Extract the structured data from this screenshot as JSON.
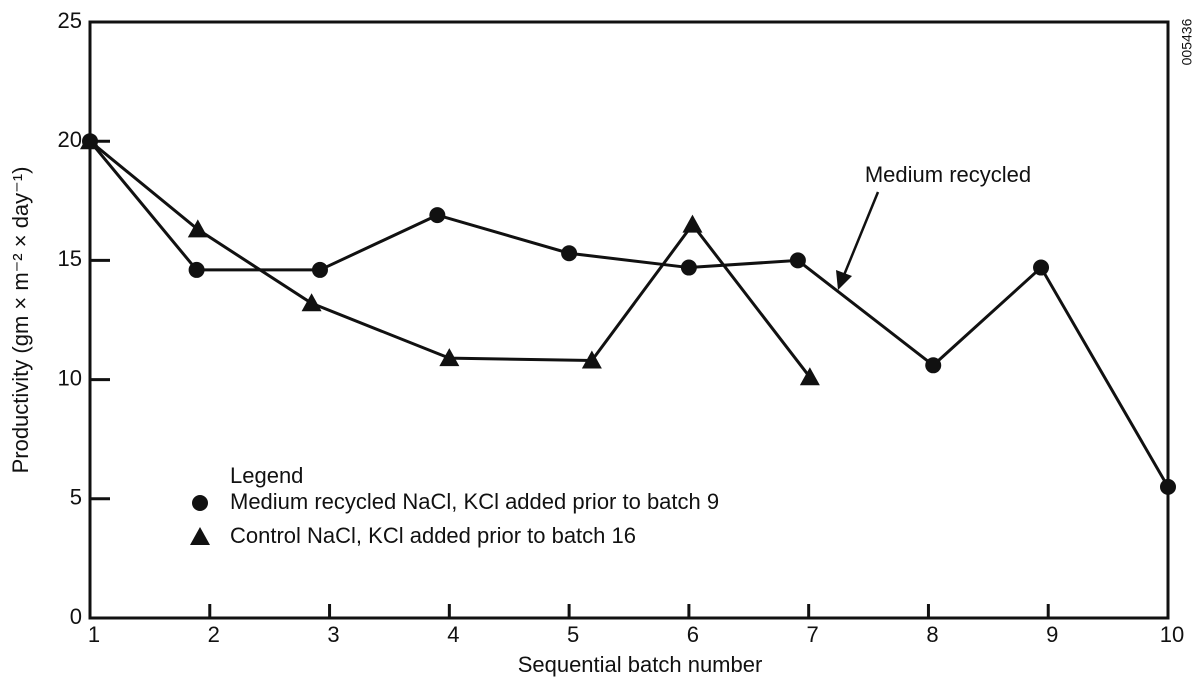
{
  "chart_data": {
    "type": "line",
    "x_label": "Sequential batch number",
    "y_label": "Productivity (gm × m⁻² × day⁻¹)",
    "xlim": [
      1,
      10
    ],
    "xticks": [
      1,
      2,
      3,
      4,
      5,
      6,
      7,
      8,
      9,
      10
    ],
    "ylim": [
      0,
      25
    ],
    "yticks": [
      0,
      5,
      10,
      15,
      20,
      25
    ],
    "legend_title": "Legend",
    "annotation": "Medium recycled",
    "figure_id": "005436",
    "series": [
      {
        "name": "Medium recycled NaCl, KCl added prior to batch 9",
        "color": "#111111",
        "marker": "circle",
        "x": [
          1,
          1.89,
          2.92,
          3.9,
          5.0,
          6.0,
          6.91,
          8.04,
          8.94,
          10
        ],
        "values": [
          20,
          14.6,
          14.6,
          16.9,
          15.3,
          14.7,
          15.0,
          10.6,
          14.7,
          5.5
        ]
      },
      {
        "name": "Control NaCl, KCl added prior to batch 16",
        "color": "#111111",
        "marker": "triangle",
        "x": [
          1,
          1.9,
          2.85,
          4.0,
          5.19,
          6.03,
          7.01
        ],
        "values": [
          20,
          16.3,
          13.2,
          10.9,
          10.8,
          16.5,
          10.1
        ]
      }
    ]
  }
}
